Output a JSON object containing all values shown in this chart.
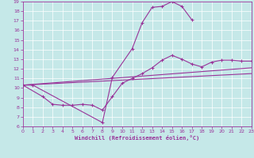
{
  "xlabel": "Windchill (Refroidissement éolien,°C)",
  "bg_color": "#c5e8e8",
  "grid_color": "#ffffff",
  "line_color": "#993399",
  "xlim": [
    0,
    23
  ],
  "ylim": [
    6,
    19
  ],
  "xticks": [
    0,
    1,
    2,
    3,
    4,
    5,
    6,
    7,
    8,
    9,
    10,
    11,
    12,
    13,
    14,
    15,
    16,
    17,
    18,
    19,
    20,
    21,
    22,
    23
  ],
  "yticks": [
    6,
    7,
    8,
    9,
    10,
    11,
    12,
    13,
    14,
    15,
    16,
    17,
    18,
    19
  ],
  "curve1_x": [
    0,
    1,
    8,
    9,
    11,
    12,
    13,
    14,
    15,
    16,
    17
  ],
  "curve1_y": [
    10.3,
    10.3,
    6.4,
    11.1,
    14.1,
    16.8,
    18.4,
    18.5,
    19.0,
    18.5,
    17.1
  ],
  "curve2_x": [
    0,
    2,
    3,
    4,
    5,
    6,
    7,
    8,
    9,
    10,
    11,
    12,
    13,
    14,
    15,
    16,
    17,
    18,
    19,
    20,
    21,
    22,
    23
  ],
  "curve2_y": [
    10.3,
    9.1,
    8.3,
    8.2,
    8.2,
    8.3,
    8.2,
    7.7,
    9.1,
    10.5,
    11.0,
    11.5,
    12.1,
    12.9,
    13.4,
    13.0,
    12.5,
    12.2,
    12.7,
    12.9,
    12.9,
    12.8,
    12.8
  ],
  "line1_x": [
    0,
    23
  ],
  "line1_y": [
    10.3,
    12.1
  ],
  "line2_x": [
    0,
    23
  ],
  "line2_y": [
    10.3,
    11.5
  ]
}
